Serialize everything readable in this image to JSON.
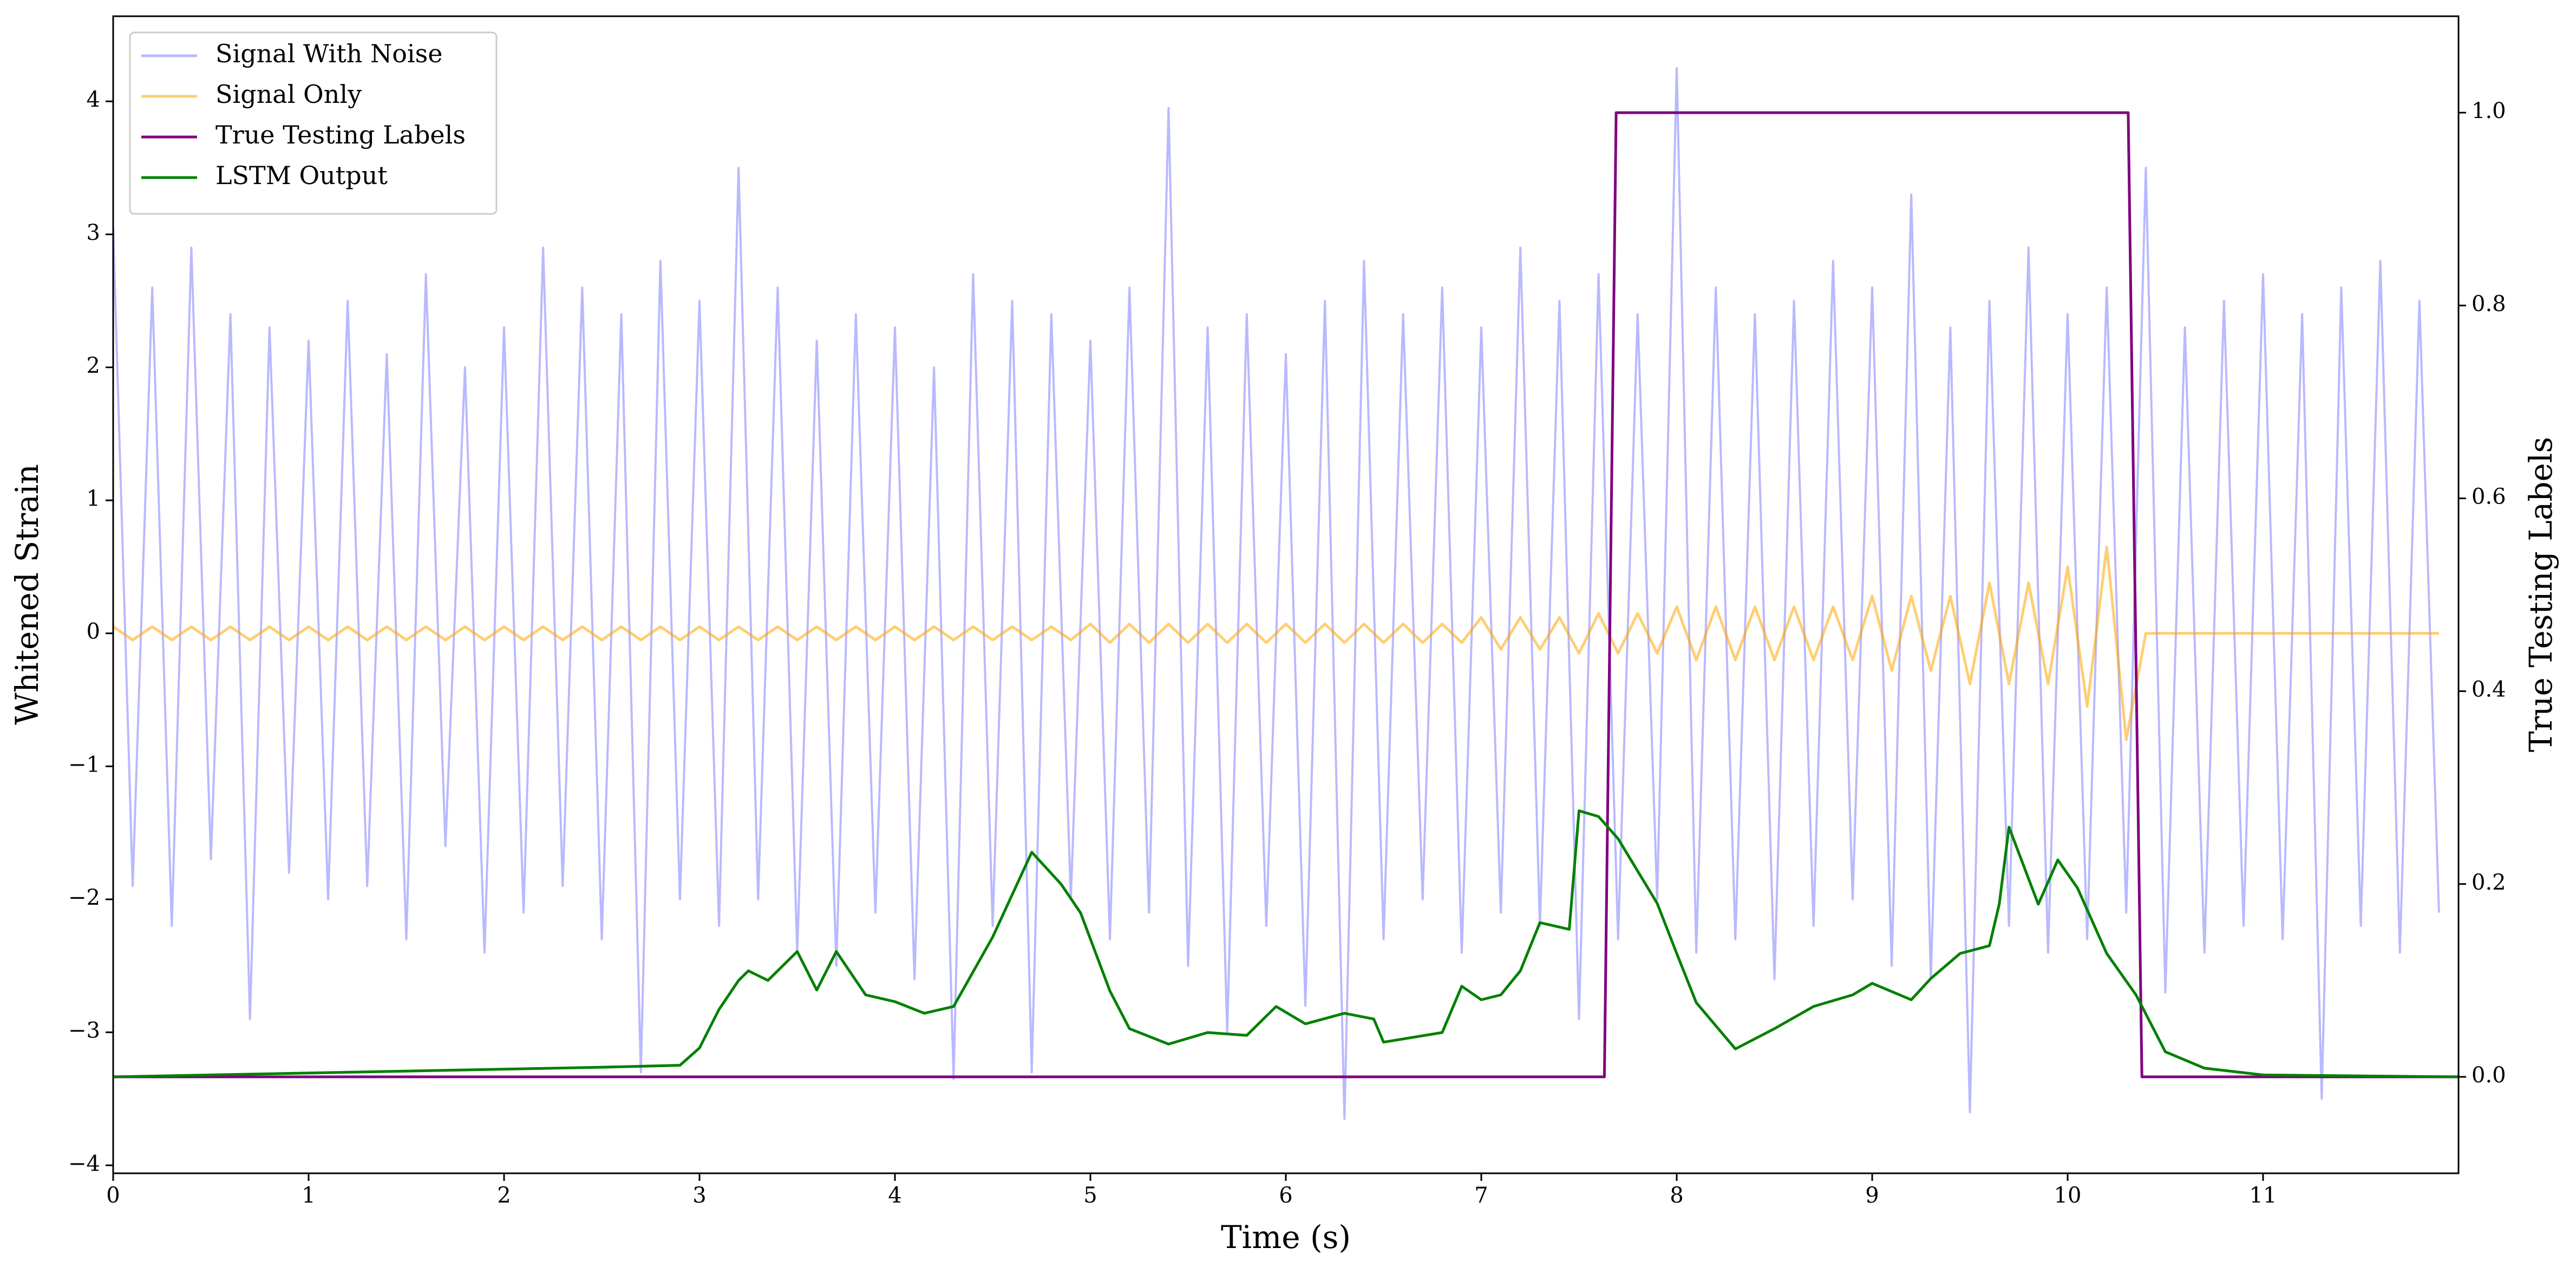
{
  "chart_data": {
    "type": "line",
    "xlabel": "Time (s)",
    "ylabel": "Whitened Strain",
    "y2label": "True Testing Labels",
    "xlim": [
      0,
      12
    ],
    "xticks": [
      0,
      1,
      2,
      3,
      4,
      5,
      6,
      7,
      8,
      9,
      10,
      11
    ],
    "ylim": [
      -4.06,
      4.64
    ],
    "yticks": [
      {
        "value": -4,
        "label": "−4"
      },
      {
        "value": -3,
        "label": "−3"
      },
      {
        "value": -2,
        "label": "−2"
      },
      {
        "value": -1,
        "label": "−1"
      },
      0,
      1,
      2,
      3,
      4
    ],
    "y2lim": [
      -0.1,
      1.1
    ],
    "y2ticks": [
      {
        "value": 0,
        "label": "0.0"
      },
      {
        "value": 0.2,
        "label": "0.2"
      },
      {
        "value": 0.4,
        "label": "0.4"
      },
      {
        "value": 0.6,
        "label": "0.6"
      },
      {
        "value": 0.8,
        "label": "0.8"
      },
      {
        "value": 1,
        "label": "1.0"
      }
    ],
    "legend": "upper left",
    "x": [
      0,
      0.1,
      0.2,
      0.3,
      0.4,
      0.5,
      0.6,
      0.7,
      0.8,
      0.9,
      1,
      1.1,
      1.2,
      1.3,
      1.4,
      1.5,
      1.6,
      1.7,
      1.8,
      1.9,
      2,
      2.1,
      2.2,
      2.3,
      2.4,
      2.5,
      2.6,
      2.7,
      2.8,
      2.9,
      3,
      3.1,
      3.2,
      3.3,
      3.4,
      3.5,
      3.6,
      3.7,
      3.8,
      3.9,
      4,
      4.1,
      4.2,
      4.3,
      4.4,
      4.5,
      4.6,
      4.7,
      4.8,
      4.9,
      5,
      5.1,
      5.2,
      5.3,
      5.4,
      5.5,
      5.6,
      5.7,
      5.8,
      5.9,
      6,
      6.1,
      6.2,
      6.3,
      6.4,
      6.5,
      6.6,
      6.7,
      6.8,
      6.9,
      7,
      7.1,
      7.2,
      7.3,
      7.4,
      7.5,
      7.6,
      7.7,
      7.8,
      7.9,
      8,
      8.1,
      8.2,
      8.3,
      8.4,
      8.5,
      8.6,
      8.7,
      8.8,
      8.9,
      9,
      9.1,
      9.2,
      9.3,
      9.4,
      9.5,
      9.6,
      9.7,
      9.8,
      9.9,
      10,
      10.1,
      10.2,
      10.3,
      10.4,
      10.5,
      10.6,
      10.7,
      10.8,
      10.9,
      11,
      11.1,
      11.2,
      11.3,
      11.4,
      11.5,
      11.6,
      11.7,
      11.8,
      11.9
    ],
    "series": [
      {
        "name": "Signal With Noise",
        "color": "#8080ff",
        "axis": "y",
        "values": [
          3.05,
          -1.9,
          2.6,
          -2.2,
          2.9,
          -1.7,
          2.4,
          -2.9,
          2.3,
          -1.8,
          2.2,
          -2.0,
          2.5,
          -1.9,
          2.1,
          -2.3,
          2.7,
          -1.6,
          2.0,
          -2.4,
          2.3,
          -2.1,
          2.9,
          -1.9,
          2.6,
          -2.3,
          2.4,
          -3.3,
          2.8,
          -2.0,
          2.5,
          -2.2,
          3.5,
          -2.0,
          2.6,
          -2.4,
          2.2,
          -2.5,
          2.4,
          -2.1,
          2.3,
          -2.6,
          2.0,
          -3.35,
          2.7,
          -2.2,
          2.5,
          -3.3,
          2.4,
          -2.0,
          2.2,
          -2.3,
          2.6,
          -2.1,
          3.95,
          -2.5,
          2.3,
          -3.0,
          2.4,
          -2.2,
          2.1,
          -2.8,
          2.5,
          -3.65,
          2.8,
          -2.3,
          2.4,
          -2.0,
          2.6,
          -2.4,
          2.3,
          -2.1,
          2.9,
          -2.2,
          2.5,
          -2.9,
          2.7,
          -2.3,
          2.4,
          -2.0,
          4.25,
          -2.4,
          2.6,
          -2.3,
          2.4,
          -2.6,
          2.5,
          -2.2,
          2.8,
          -2.0,
          2.6,
          -2.5,
          3.3,
          -2.6,
          2.3,
          -3.6,
          2.5,
          -2.2,
          2.9,
          -2.4,
          2.4,
          -2.3,
          2.6,
          -2.1,
          3.5,
          -2.7,
          2.3,
          -2.4,
          2.5,
          -2.2,
          2.7,
          -2.3,
          2.4,
          -3.5,
          2.6,
          -2.2,
          2.8,
          -2.4,
          2.5,
          -2.1
        ]
      },
      {
        "name": "Signal Only",
        "color": "#ffa500",
        "axis": "y",
        "values": [
          0.05,
          -0.05,
          0.05,
          -0.05,
          0.05,
          -0.05,
          0.05,
          -0.05,
          0.05,
          -0.05,
          0.05,
          -0.05,
          0.05,
          -0.05,
          0.05,
          -0.05,
          0.05,
          -0.05,
          0.05,
          -0.05,
          0.05,
          -0.05,
          0.05,
          -0.05,
          0.05,
          -0.05,
          0.05,
          -0.05,
          0.05,
          -0.05,
          0.05,
          -0.05,
          0.05,
          -0.05,
          0.05,
          -0.05,
          0.05,
          -0.05,
          0.05,
          -0.05,
          0.05,
          -0.05,
          0.05,
          -0.05,
          0.05,
          -0.05,
          0.05,
          -0.05,
          0.05,
          -0.05,
          0.07,
          -0.07,
          0.07,
          -0.07,
          0.07,
          -0.07,
          0.07,
          -0.07,
          0.07,
          -0.07,
          0.07,
          -0.07,
          0.07,
          -0.07,
          0.07,
          -0.07,
          0.07,
          -0.07,
          0.07,
          -0.07,
          0.12,
          -0.12,
          0.12,
          -0.12,
          0.12,
          -0.15,
          0.15,
          -0.15,
          0.15,
          -0.15,
          0.2,
          -0.2,
          0.2,
          -0.2,
          0.2,
          -0.2,
          0.2,
          -0.2,
          0.2,
          -0.2,
          0.28,
          -0.28,
          0.28,
          -0.28,
          0.28,
          -0.38,
          0.38,
          -0.38,
          0.38,
          -0.38,
          0.5,
          -0.55,
          0.65,
          -0.8,
          0,
          0,
          0,
          0,
          0,
          0,
          0,
          0,
          0,
          0,
          0,
          0,
          0,
          0,
          0,
          0
        ]
      },
      {
        "name": "True Testing Labels",
        "color": "#800080",
        "axis": "y2",
        "x": [
          0,
          7.63,
          7.69,
          10.31,
          10.38,
          12
        ],
        "values": [
          0,
          0,
          1,
          1,
          0,
          0
        ]
      },
      {
        "name": "LSTM Output",
        "color": "#008000",
        "axis": "y2",
        "x": [
          0,
          2.5,
          2.9,
          3.0,
          3.1,
          3.2,
          3.25,
          3.35,
          3.5,
          3.6,
          3.7,
          3.85,
          4.0,
          4.15,
          4.3,
          4.5,
          4.7,
          4.85,
          4.95,
          5.1,
          5.2,
          5.4,
          5.6,
          5.8,
          5.95,
          6.1,
          6.3,
          6.45,
          6.5,
          6.8,
          6.9,
          7.0,
          7.1,
          7.2,
          7.3,
          7.45,
          7.5,
          7.6,
          7.7,
          7.9,
          8.0,
          8.1,
          8.3,
          8.5,
          8.7,
          8.9,
          9.0,
          9.2,
          9.3,
          9.45,
          9.6,
          9.65,
          9.7,
          9.85,
          9.95,
          10.05,
          10.2,
          10.35,
          10.5,
          10.7,
          11.0,
          12
        ],
        "values": [
          0,
          0.01,
          0.012,
          0.03,
          0.07,
          0.1,
          0.11,
          0.1,
          0.13,
          0.09,
          0.13,
          0.085,
          0.078,
          0.066,
          0.073,
          0.145,
          0.233,
          0.2,
          0.17,
          0.089,
          0.05,
          0.034,
          0.046,
          0.043,
          0.073,
          0.055,
          0.066,
          0.06,
          0.036,
          0.046,
          0.094,
          0.08,
          0.085,
          0.11,
          0.16,
          0.153,
          0.276,
          0.27,
          0.247,
          0.18,
          0.128,
          0.077,
          0.029,
          0.05,
          0.073,
          0.085,
          0.097,
          0.08,
          0.102,
          0.128,
          0.136,
          0.179,
          0.259,
          0.179,
          0.225,
          0.196,
          0.128,
          0.085,
          0.026,
          0.009,
          0.002,
          0
        ]
      }
    ]
  }
}
